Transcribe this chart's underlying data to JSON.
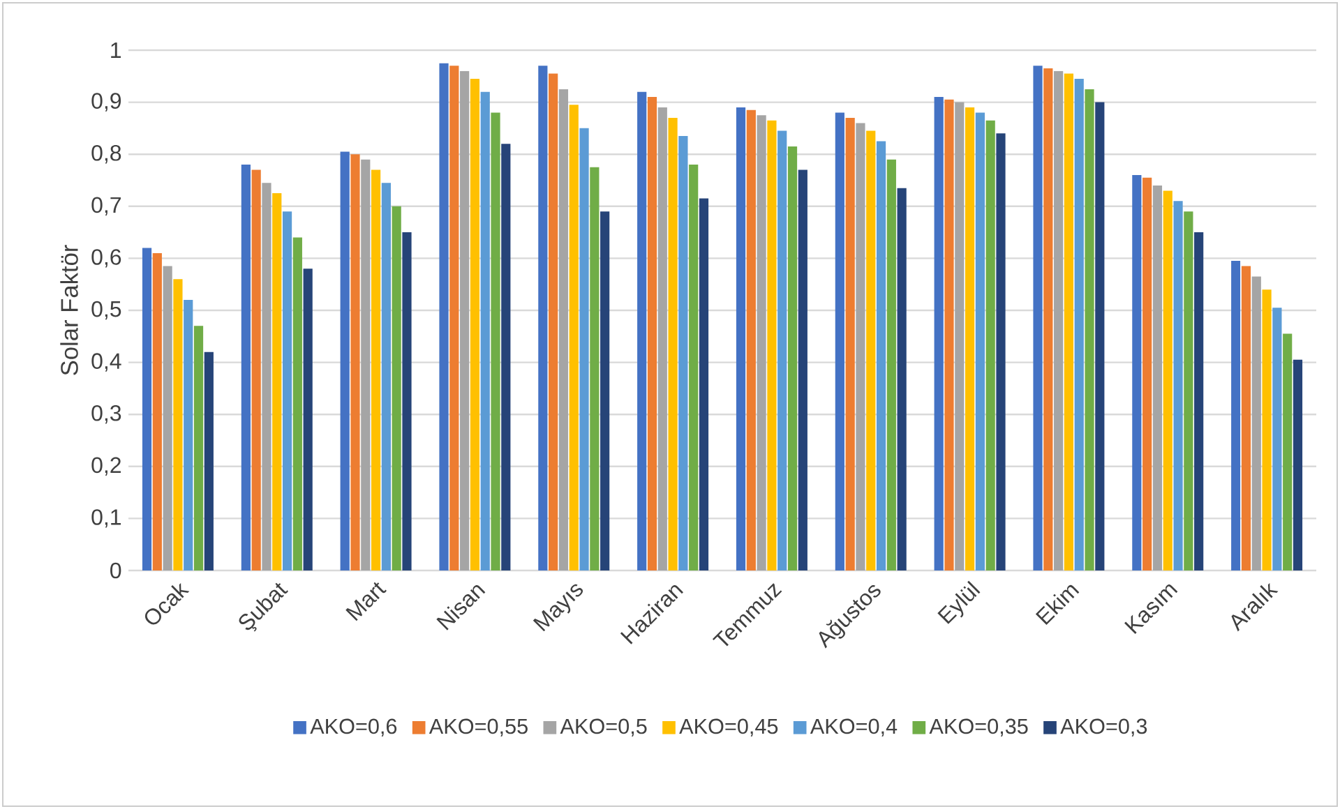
{
  "chart_data": {
    "type": "bar",
    "ylabel": "Solar Faktör",
    "categories": [
      "Ocak",
      "Şubat",
      "Mart",
      "Nisan",
      "Mayıs",
      "Haziran",
      "Temmuz",
      "Ağustos",
      "Eylül",
      "Ekim",
      "Kasım",
      "Aralık"
    ],
    "series": [
      {
        "name": "AKO=0,6",
        "color": "#4472c4",
        "values": [
          0.62,
          0.78,
          0.805,
          0.975,
          0.97,
          0.92,
          0.89,
          0.88,
          0.91,
          0.97,
          0.76,
          0.595
        ]
      },
      {
        "name": "AKO=0,55",
        "color": "#ed7d31",
        "values": [
          0.61,
          0.77,
          0.8,
          0.97,
          0.955,
          0.91,
          0.885,
          0.87,
          0.905,
          0.965,
          0.755,
          0.585
        ]
      },
      {
        "name": "AKO=0,5",
        "color": "#a5a5a5",
        "values": [
          0.585,
          0.745,
          0.79,
          0.96,
          0.925,
          0.89,
          0.875,
          0.86,
          0.9,
          0.96,
          0.74,
          0.565
        ]
      },
      {
        "name": "AKO=0,45",
        "color": "#ffc000",
        "values": [
          0.56,
          0.725,
          0.77,
          0.945,
          0.895,
          0.87,
          0.865,
          0.845,
          0.89,
          0.955,
          0.73,
          0.54
        ]
      },
      {
        "name": "AKO=0,4",
        "color": "#5b9bd5",
        "values": [
          0.52,
          0.69,
          0.745,
          0.92,
          0.85,
          0.835,
          0.845,
          0.825,
          0.88,
          0.945,
          0.71,
          0.505
        ]
      },
      {
        "name": "AKO=0,35",
        "color": "#70ad47",
        "values": [
          0.47,
          0.64,
          0.7,
          0.88,
          0.775,
          0.78,
          0.815,
          0.79,
          0.865,
          0.925,
          0.69,
          0.455
        ]
      },
      {
        "name": "AKO=0,3",
        "color": "#264478",
        "values": [
          0.42,
          0.58,
          0.65,
          0.82,
          0.69,
          0.715,
          0.77,
          0.735,
          0.84,
          0.9,
          0.65,
          0.405
        ]
      }
    ],
    "ylim": [
      0,
      1
    ],
    "yticks": [
      "0",
      {
        "value": 0.1,
        "label": "0,1"
      },
      {
        "value": 0.2,
        "label": "0,2"
      },
      {
        "value": 0.3,
        "label": "0,3"
      },
      {
        "value": 0.4,
        "label": "0,4"
      },
      {
        "value": 0.5,
        "label": "0,5"
      },
      {
        "value": 0.6,
        "label": "0,6"
      },
      {
        "value": 0.7,
        "label": "0,7"
      },
      {
        "value": 0.8,
        "label": "0,8"
      },
      {
        "value": 0.9,
        "label": "0,9"
      },
      1
    ],
    "grid": "y",
    "legend": "bottom"
  }
}
